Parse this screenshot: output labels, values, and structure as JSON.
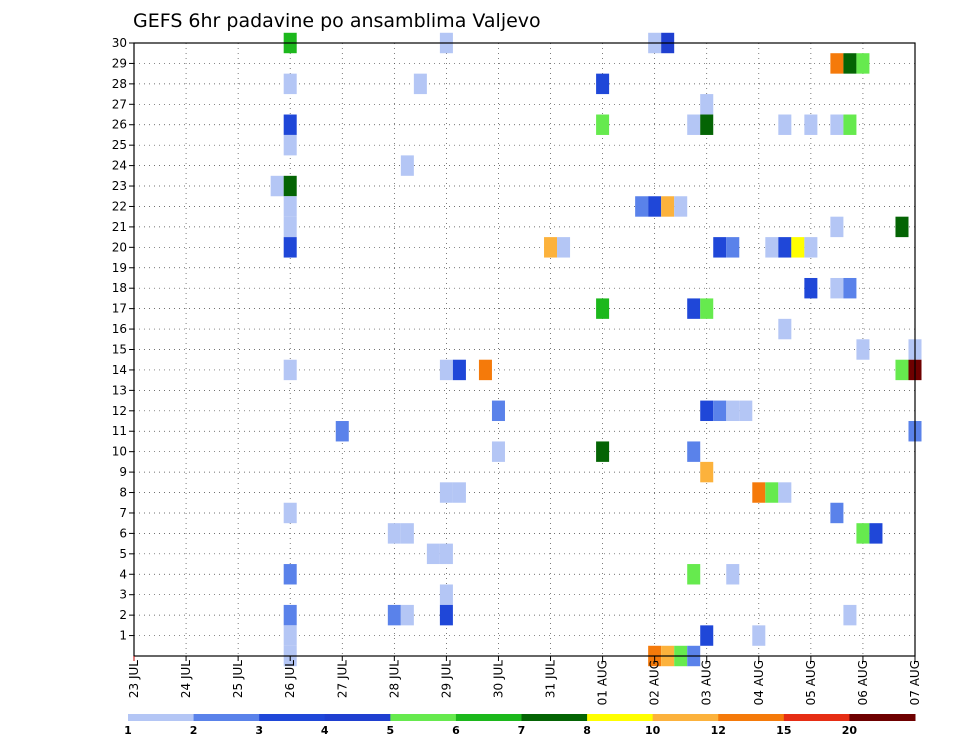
{
  "chart_data": {
    "type": "heatmap",
    "title": "GEFS 6hr padavine po ansamblima Valjevo",
    "xlabel": "",
    "ylabel": "",
    "x_ticks": [
      "23 JUL",
      "24 JUL",
      "25 JUL",
      "26 JUL",
      "27 JUL",
      "28 JUL",
      "29 JUL",
      "30 JUL",
      "31 JUL",
      "01 AUG",
      "02 AUG",
      "03 AUG",
      "04 AUG",
      "05 AUG",
      "06 AUG",
      "07 AUG"
    ],
    "xlim": [
      "23 JUL 00Z",
      "07 AUG 00Z"
    ],
    "ylim": [
      0,
      30
    ],
    "y_ticks": [
      1,
      2,
      3,
      4,
      5,
      6,
      7,
      8,
      9,
      10,
      11,
      12,
      13,
      14,
      15,
      16,
      17,
      18,
      19,
      20,
      21,
      22,
      23,
      24,
      25,
      26,
      27,
      28,
      29,
      30
    ],
    "grid": true,
    "colorbar": {
      "labels": [
        "1",
        "2",
        "3",
        "4",
        "5",
        "6",
        "7",
        "8",
        "10",
        "12",
        "15",
        "20"
      ],
      "colors": [
        "#b4c6f5",
        "#5a82ea",
        "#1f47d8",
        "#1f3fd0",
        "#66ea4e",
        "#1cb81c",
        "#046404",
        "#ffff00",
        "#fcb23c",
        "#f57a0a",
        "#e62d14",
        "#6e0000"
      ]
    },
    "cells": [
      {
        "member": 30,
        "t": "26 JUL 00Z",
        "c": 5
      },
      {
        "member": 30,
        "t": "29 JUL 00Z",
        "c": 0
      },
      {
        "member": 30,
        "t": "02 AUG 00Z",
        "c": 0
      },
      {
        "member": 30,
        "t": "02 AUG 06Z",
        "c": 3
      },
      {
        "member": 29,
        "t": "05 AUG 12Z",
        "c": 9
      },
      {
        "member": 29,
        "t": "05 AUG 18Z",
        "c": 6
      },
      {
        "member": 29,
        "t": "06 AUG 00Z",
        "c": 4
      },
      {
        "member": 28,
        "t": "26 JUL 00Z",
        "c": 0
      },
      {
        "member": 28,
        "t": "28 JUL 12Z",
        "c": 0
      },
      {
        "member": 28,
        "t": "01 AUG 00Z",
        "c": 2
      },
      {
        "member": 27,
        "t": "03 AUG 00Z",
        "c": 0
      },
      {
        "member": 26,
        "t": "26 JUL 00Z",
        "c": 2
      },
      {
        "member": 26,
        "t": "01 AUG 00Z",
        "c": 4
      },
      {
        "member": 26,
        "t": "02 AUG 18Z",
        "c": 0
      },
      {
        "member": 26,
        "t": "03 AUG 00Z",
        "c": 6
      },
      {
        "member": 26,
        "t": "04 AUG 12Z",
        "c": 0
      },
      {
        "member": 26,
        "t": "05 AUG 00Z",
        "c": 0
      },
      {
        "member": 26,
        "t": "05 AUG 12Z",
        "c": 0
      },
      {
        "member": 26,
        "t": "05 AUG 18Z",
        "c": 4
      },
      {
        "member": 25,
        "t": "26 JUL 00Z",
        "c": 0
      },
      {
        "member": 24,
        "t": "28 JUL 06Z",
        "c": 0
      },
      {
        "member": 23,
        "t": "25 JUL 18Z",
        "c": 0
      },
      {
        "member": 23,
        "t": "26 JUL 00Z",
        "c": 6
      },
      {
        "member": 22,
        "t": "26 JUL 00Z",
        "c": 0
      },
      {
        "member": 22,
        "t": "01 AUG 18Z",
        "c": 1
      },
      {
        "member": 22,
        "t": "02 AUG 00Z",
        "c": 2
      },
      {
        "member": 22,
        "t": "02 AUG 06Z",
        "c": 8
      },
      {
        "member": 22,
        "t": "02 AUG 12Z",
        "c": 0
      },
      {
        "member": 21,
        "t": "26 JUL 00Z",
        "c": 0
      },
      {
        "member": 21,
        "t": "05 AUG 12Z",
        "c": 0
      },
      {
        "member": 21,
        "t": "06 AUG 18Z",
        "c": 6
      },
      {
        "member": 20,
        "t": "26 JUL 00Z",
        "c": 2
      },
      {
        "member": 20,
        "t": "31 JUL 00Z",
        "c": 8
      },
      {
        "member": 20,
        "t": "31 JUL 06Z",
        "c": 0
      },
      {
        "member": 20,
        "t": "03 AUG 06Z",
        "c": 2
      },
      {
        "member": 20,
        "t": "03 AUG 12Z",
        "c": 1
      },
      {
        "member": 20,
        "t": "04 AUG 06Z",
        "c": 0
      },
      {
        "member": 20,
        "t": "04 AUG 12Z",
        "c": 2
      },
      {
        "member": 20,
        "t": "04 AUG 18Z",
        "c": 7
      },
      {
        "member": 20,
        "t": "05 AUG 00Z",
        "c": 0
      },
      {
        "member": 18,
        "t": "05 AUG 00Z",
        "c": 2
      },
      {
        "member": 18,
        "t": "05 AUG 12Z",
        "c": 0
      },
      {
        "member": 18,
        "t": "05 AUG 18Z",
        "c": 1
      },
      {
        "member": 17,
        "t": "01 AUG 00Z",
        "c": 5
      },
      {
        "member": 17,
        "t": "02 AUG 18Z",
        "c": 2
      },
      {
        "member": 17,
        "t": "03 AUG 00Z",
        "c": 4
      },
      {
        "member": 16,
        "t": "04 AUG 12Z",
        "c": 0
      },
      {
        "member": 15,
        "t": "06 AUG 00Z",
        "c": 0
      },
      {
        "member": 15,
        "t": "07 AUG 00Z",
        "c": 0
      },
      {
        "member": 14,
        "t": "26 JUL 00Z",
        "c": 0
      },
      {
        "member": 14,
        "t": "29 JUL 00Z",
        "c": 0
      },
      {
        "member": 14,
        "t": "29 JUL 06Z",
        "c": 2
      },
      {
        "member": 14,
        "t": "29 JUL 18Z",
        "c": 9
      },
      {
        "member": 14,
        "t": "06 AUG 18Z",
        "c": 4
      },
      {
        "member": 14,
        "t": "07 AUG 00Z",
        "c": 11
      },
      {
        "member": 12,
        "t": "30 JUL 00Z",
        "c": 1
      },
      {
        "member": 12,
        "t": "03 AUG 00Z",
        "c": 2
      },
      {
        "member": 12,
        "t": "03 AUG 06Z",
        "c": 1
      },
      {
        "member": 12,
        "t": "03 AUG 12Z",
        "c": 0
      },
      {
        "member": 12,
        "t": "03 AUG 18Z",
        "c": 0
      },
      {
        "member": 11,
        "t": "27 JUL 00Z",
        "c": 1
      },
      {
        "member": 11,
        "t": "07 AUG 00Z",
        "c": 1
      },
      {
        "member": 10,
        "t": "30 JUL 00Z",
        "c": 0
      },
      {
        "member": 10,
        "t": "01 AUG 00Z",
        "c": 6
      },
      {
        "member": 10,
        "t": "02 AUG 18Z",
        "c": 1
      },
      {
        "member": 9,
        "t": "03 AUG 00Z",
        "c": 8
      },
      {
        "member": 8,
        "t": "29 JUL 00Z",
        "c": 0
      },
      {
        "member": 8,
        "t": "29 JUL 06Z",
        "c": 0
      },
      {
        "member": 8,
        "t": "04 AUG 00Z",
        "c": 9
      },
      {
        "member": 8,
        "t": "04 AUG 06Z",
        "c": 4
      },
      {
        "member": 8,
        "t": "04 AUG 12Z",
        "c": 0
      },
      {
        "member": 7,
        "t": "26 JUL 00Z",
        "c": 0
      },
      {
        "member": 7,
        "t": "05 AUG 12Z",
        "c": 1
      },
      {
        "member": 6,
        "t": "28 JUL 00Z",
        "c": 0
      },
      {
        "member": 6,
        "t": "28 JUL 06Z",
        "c": 0
      },
      {
        "member": 6,
        "t": "06 AUG 00Z",
        "c": 4
      },
      {
        "member": 6,
        "t": "06 AUG 06Z",
        "c": 2
      },
      {
        "member": 5,
        "t": "28 JUL 18Z",
        "c": 0
      },
      {
        "member": 5,
        "t": "29 JUL 00Z",
        "c": 0
      },
      {
        "member": 4,
        "t": "26 JUL 00Z",
        "c": 1
      },
      {
        "member": 4,
        "t": "02 AUG 18Z",
        "c": 4
      },
      {
        "member": 4,
        "t": "03 AUG 12Z",
        "c": 0
      },
      {
        "member": 3,
        "t": "29 JUL 00Z",
        "c": 0
      },
      {
        "member": 2,
        "t": "26 JUL 00Z",
        "c": 1
      },
      {
        "member": 2,
        "t": "28 JUL 00Z",
        "c": 1
      },
      {
        "member": 2,
        "t": "28 JUL 06Z",
        "c": 0
      },
      {
        "member": 2,
        "t": "29 JUL 00Z",
        "c": 2
      },
      {
        "member": 2,
        "t": "05 AUG 18Z",
        "c": 0
      },
      {
        "member": 1,
        "t": "26 JUL 00Z",
        "c": 0
      },
      {
        "member": 1,
        "t": "03 AUG 00Z",
        "c": 2
      },
      {
        "member": 1,
        "t": "04 AUG 00Z",
        "c": 0
      },
      {
        "member": 0,
        "t": "26 JUL 00Z",
        "c": 0
      },
      {
        "member": 0,
        "t": "02 AUG 00Z",
        "c": 9
      },
      {
        "member": 0,
        "t": "02 AUG 06Z",
        "c": 8
      },
      {
        "member": 0,
        "t": "02 AUG 12Z",
        "c": 4
      },
      {
        "member": 0,
        "t": "02 AUG 18Z",
        "c": 1
      }
    ]
  }
}
